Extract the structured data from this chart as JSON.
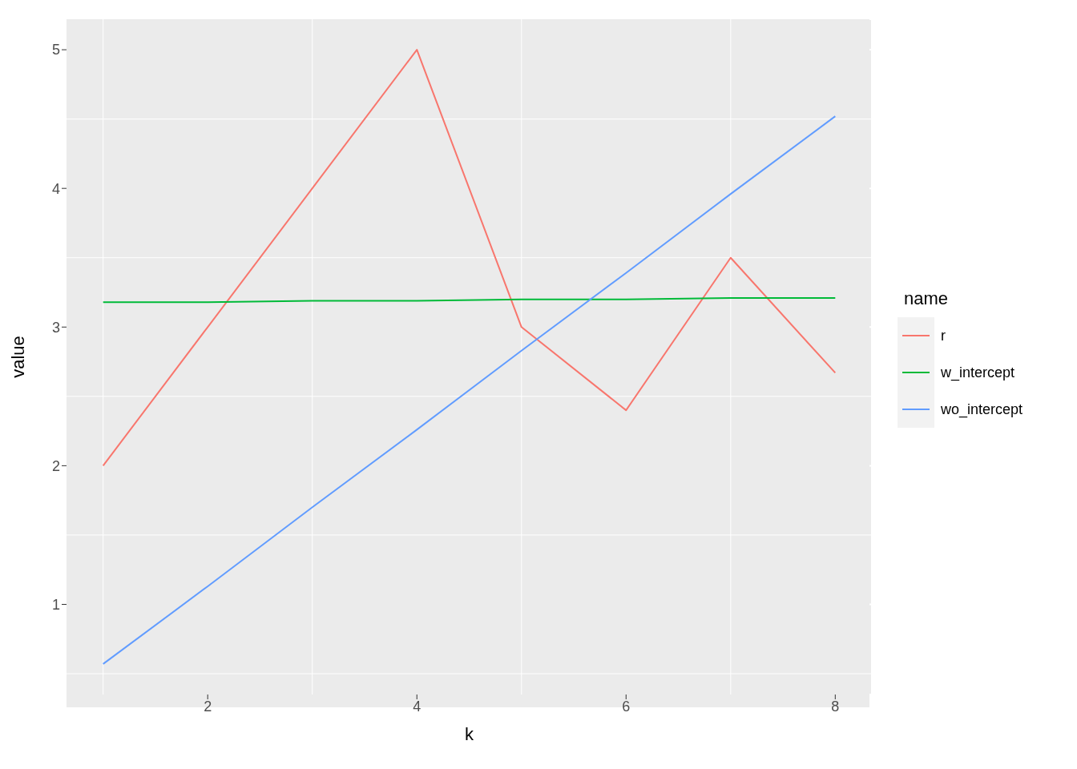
{
  "chart_data": {
    "type": "line",
    "xlabel": "k",
    "ylabel": "value",
    "legend_title": "name",
    "x": [
      1,
      2,
      3,
      4,
      5,
      6,
      7,
      8
    ],
    "series": [
      {
        "name": "r",
        "color": "#f8766d",
        "values": [
          2,
          3,
          4,
          5,
          3,
          2.4,
          3.5,
          2.67
        ]
      },
      {
        "name": "w_intercept",
        "color": "#00ba38",
        "values": [
          3.18,
          3.18,
          3.19,
          3.19,
          3.2,
          3.2,
          3.21,
          3.21
        ]
      },
      {
        "name": "wo_intercept",
        "color": "#619cff",
        "values": [
          0.57,
          1.13,
          1.7,
          2.26,
          2.83,
          3.39,
          3.96,
          4.52
        ]
      }
    ],
    "xlim": [
      0.65,
      8.35
    ],
    "xticks": [
      2,
      4,
      6,
      8
    ],
    "ylim": [
      0.35,
      5.22
    ],
    "yticks": [
      1,
      2,
      3,
      4,
      5
    ],
    "grid": true,
    "legend": "right",
    "marker": "none",
    "line_style": "solid"
  }
}
